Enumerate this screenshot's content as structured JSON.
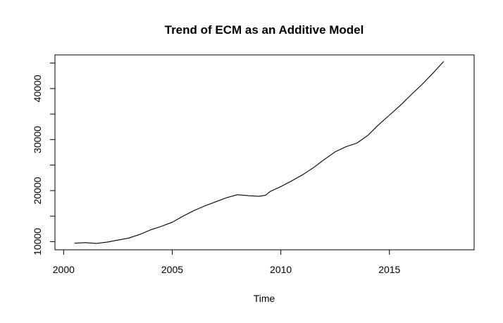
{
  "chart_data": {
    "type": "line",
    "title": "Trend of ECM as an Additive Model",
    "xlabel": "Time",
    "ylabel": "",
    "xlim": [
      1999.6,
      2018.9
    ],
    "ylim": [
      8400,
      46600
    ],
    "x_ticks": [
      2000,
      2005,
      2010,
      2015
    ],
    "x_tick_labels": [
      "2000",
      "2005",
      "2010",
      "2015"
    ],
    "y_ticks": [
      10000,
      15000,
      20000,
      25000,
      30000,
      35000,
      40000,
      45000
    ],
    "y_tick_labels": [
      "10000",
      "",
      "20000",
      "",
      "30000",
      "",
      "40000",
      ""
    ],
    "grid": false,
    "series": [
      {
        "color": "#000000",
        "x": [
          2000.5,
          2001.0,
          2001.5,
          2002.0,
          2002.5,
          2003.0,
          2003.5,
          2004.0,
          2004.5,
          2005.0,
          2005.5,
          2006.0,
          2006.5,
          2007.0,
          2007.5,
          2008.0,
          2008.5,
          2009.0,
          2009.3,
          2009.5,
          2010.0,
          2010.5,
          2011.0,
          2011.5,
          2012.0,
          2012.5,
          2013.0,
          2013.5,
          2014.0,
          2014.5,
          2015.0,
          2015.5,
          2016.0,
          2016.5,
          2017.0,
          2017.5
        ],
        "y": [
          9700,
          9800,
          9650,
          9900,
          10300,
          10700,
          11400,
          12300,
          13000,
          13800,
          15000,
          16100,
          17000,
          17800,
          18600,
          19200,
          19000,
          18900,
          19100,
          19800,
          20800,
          21900,
          23100,
          24500,
          26100,
          27600,
          28600,
          29300,
          30800,
          32900,
          34800,
          36700,
          38800,
          40800,
          43000,
          45300
        ]
      }
    ]
  }
}
